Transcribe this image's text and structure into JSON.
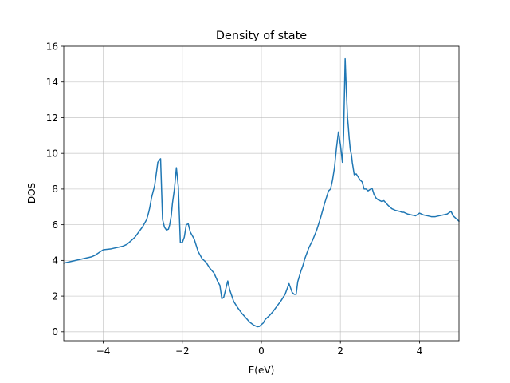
{
  "chart_data": {
    "type": "line",
    "title": "Density of state",
    "xlabel": "E(eV)",
    "ylabel": "DOS",
    "xlim": [
      -5,
      5
    ],
    "ylim": [
      -0.5,
      16
    ],
    "xticks": [
      -4,
      -2,
      0,
      2,
      4
    ],
    "xtick_labels": [
      "−4",
      "−2",
      "0",
      "2",
      "4"
    ],
    "yticks": [
      0,
      2,
      4,
      6,
      8,
      10,
      12,
      14,
      16
    ],
    "ytick_labels": [
      "0",
      "2",
      "4",
      "6",
      "8",
      "10",
      "12",
      "14",
      "16"
    ],
    "grid": true,
    "series": [
      {
        "color": "#1f77b4",
        "x": [
          -5.0,
          -4.8,
          -4.6,
          -4.5,
          -4.4,
          -4.3,
          -4.2,
          -4.0,
          -3.8,
          -3.6,
          -3.5,
          -3.4,
          -3.3,
          -3.2,
          -3.1,
          -3.0,
          -2.95,
          -2.9,
          -2.85,
          -2.82,
          -2.78,
          -2.7,
          -2.62,
          -2.55,
          -2.5,
          -2.45,
          -2.4,
          -2.35,
          -2.32,
          -2.28,
          -2.25,
          -2.2,
          -2.15,
          -2.1,
          -2.05,
          -2.0,
          -1.95,
          -1.9,
          -1.85,
          -1.8,
          -1.7,
          -1.6,
          -1.5,
          -1.4,
          -1.3,
          -1.2,
          -1.15,
          -1.1,
          -1.05,
          -1.0,
          -0.95,
          -0.9,
          -0.85,
          -0.8,
          -0.7,
          -0.6,
          -0.5,
          -0.4,
          -0.3,
          -0.2,
          -0.1,
          -0.05,
          0.0,
          0.05,
          0.1,
          0.2,
          0.3,
          0.4,
          0.5,
          0.6,
          0.7,
          0.78,
          0.83,
          0.88,
          0.92,
          0.96,
          1.0,
          1.05,
          1.1,
          1.2,
          1.3,
          1.4,
          1.5,
          1.6,
          1.7,
          1.75,
          1.8,
          1.85,
          1.9,
          1.95,
          2.0,
          2.05,
          2.08,
          2.12,
          2.15,
          2.18,
          2.2,
          2.22,
          2.25,
          2.28,
          2.3,
          2.35,
          2.4,
          2.5,
          2.55,
          2.6,
          2.65,
          2.7,
          2.8,
          2.85,
          2.9,
          2.95,
          3.0,
          3.05,
          3.1,
          3.2,
          3.3,
          3.4,
          3.5,
          3.55,
          3.6,
          3.65,
          3.7,
          3.8,
          3.9,
          4.0,
          4.1,
          4.2,
          4.3,
          4.4,
          4.5,
          4.6,
          4.7,
          4.8,
          4.85,
          4.9,
          4.95,
          5.0
        ],
        "y": [
          3.85,
          3.95,
          4.05,
          4.1,
          4.15,
          4.2,
          4.3,
          4.6,
          4.65,
          4.75,
          4.8,
          4.9,
          5.1,
          5.3,
          5.6,
          5.9,
          6.1,
          6.3,
          6.7,
          7.0,
          7.5,
          8.2,
          9.5,
          9.7,
          6.3,
          5.85,
          5.7,
          5.75,
          6.0,
          6.5,
          7.2,
          8.0,
          9.2,
          8.1,
          5.0,
          5.0,
          5.3,
          6.0,
          6.05,
          5.6,
          5.2,
          4.5,
          4.1,
          3.9,
          3.55,
          3.3,
          3.05,
          2.8,
          2.6,
          1.85,
          1.95,
          2.4,
          2.85,
          2.35,
          1.7,
          1.35,
          1.05,
          0.8,
          0.55,
          0.38,
          0.28,
          0.3,
          0.4,
          0.5,
          0.7,
          0.9,
          1.15,
          1.45,
          1.75,
          2.1,
          2.7,
          2.2,
          2.1,
          2.1,
          2.8,
          3.1,
          3.4,
          3.7,
          4.1,
          4.7,
          5.15,
          5.7,
          6.4,
          7.2,
          7.9,
          8.0,
          8.5,
          9.2,
          10.3,
          11.2,
          10.5,
          9.5,
          11.0,
          15.3,
          13.5,
          12.0,
          11.5,
          10.9,
          10.2,
          9.9,
          9.5,
          8.8,
          8.85,
          8.5,
          8.4,
          8.0,
          8.0,
          7.9,
          8.05,
          7.7,
          7.5,
          7.4,
          7.35,
          7.3,
          7.35,
          7.1,
          6.9,
          6.8,
          6.75,
          6.7,
          6.7,
          6.65,
          6.6,
          6.55,
          6.5,
          6.65,
          6.55,
          6.5,
          6.45,
          6.45,
          6.5,
          6.55,
          6.6,
          6.75,
          6.5,
          6.4,
          6.3,
          6.2
        ]
      }
    ]
  }
}
